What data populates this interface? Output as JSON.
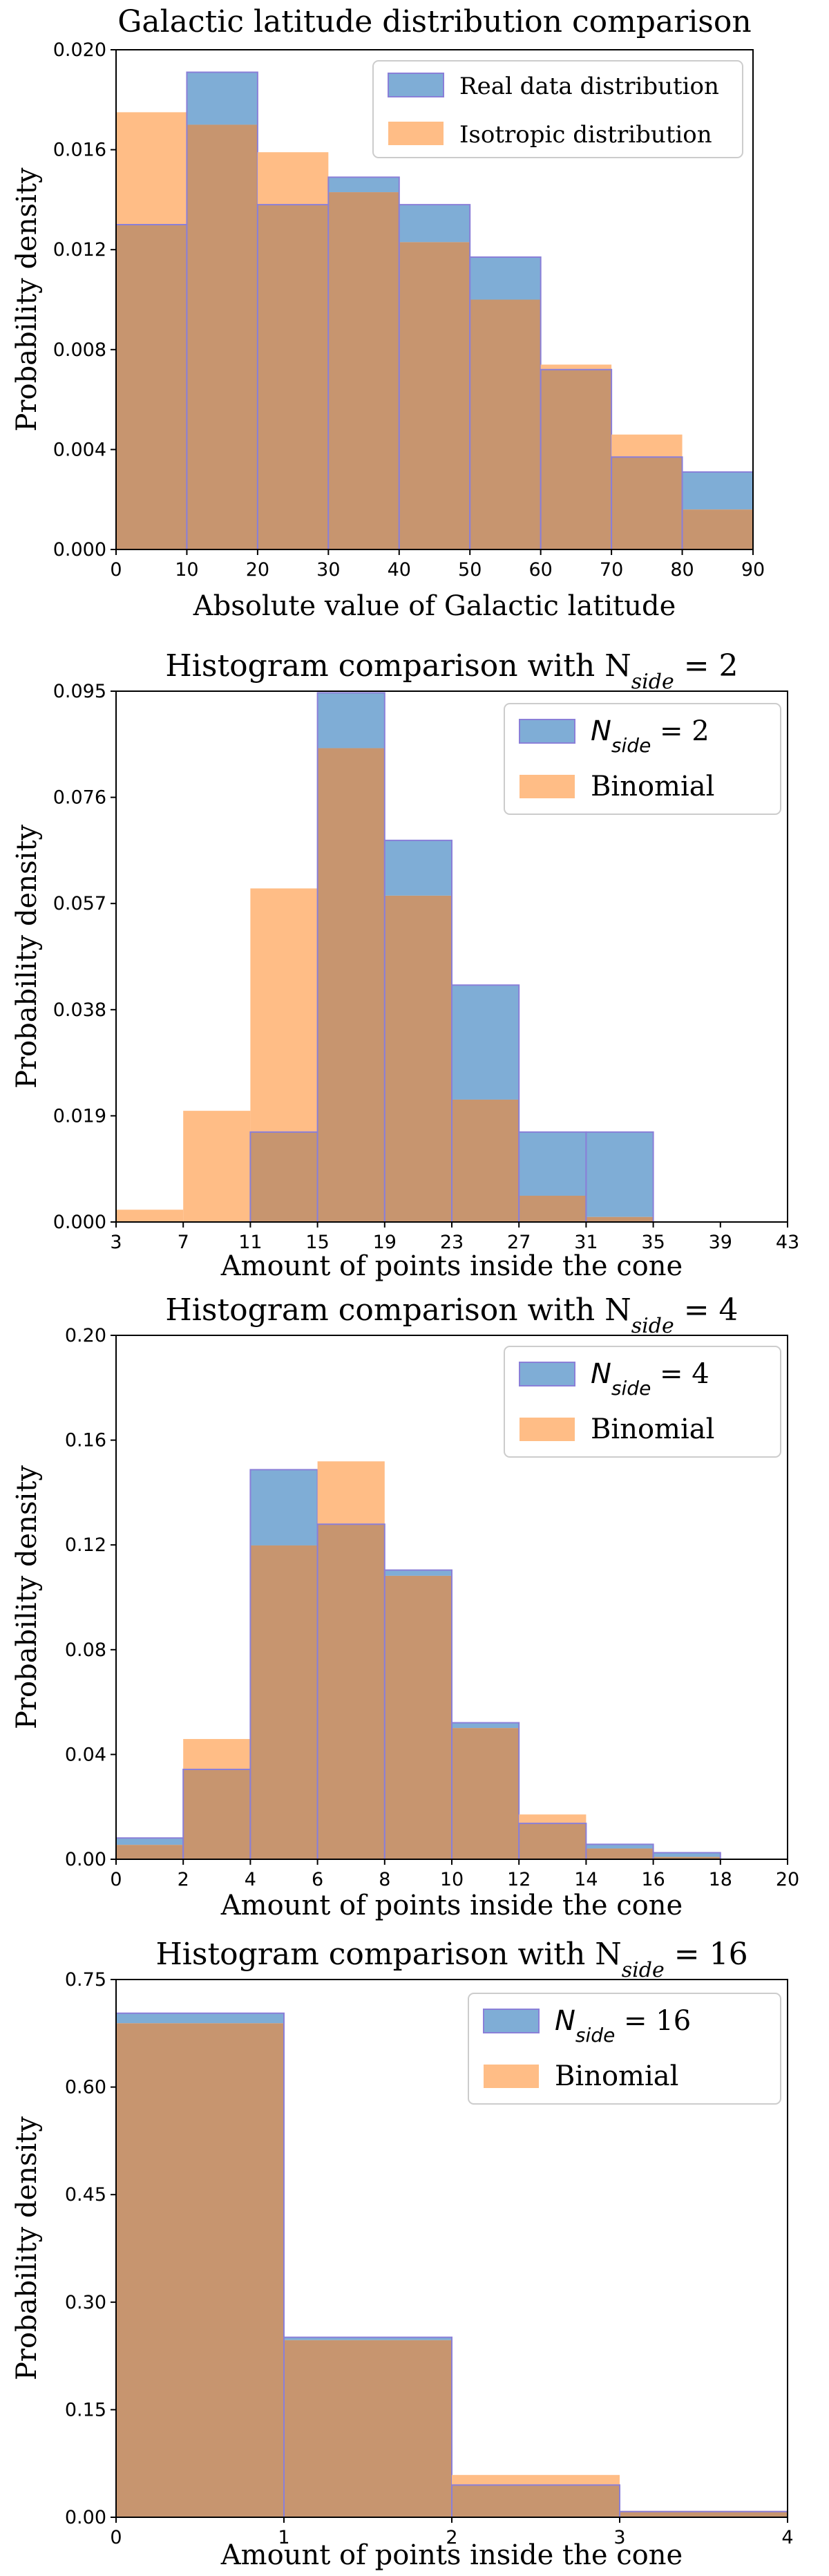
{
  "colors": {
    "series_a": "#7fadd6",
    "series_b": "#ffbd86",
    "overlap": "#c7956f",
    "edge": "#8a7fd8"
  },
  "chart_data": [
    {
      "type": "bar",
      "title": "Galactic latitude distribution comparison",
      "xlabel": "Absolute value of Galactic latitude",
      "ylabel": "Probability density",
      "bin_edges": [
        0,
        10,
        20,
        30,
        40,
        50,
        60,
        70,
        80,
        90
      ],
      "xticks": [
        "0",
        "10",
        "20",
        "30",
        "40",
        "50",
        "60",
        "70",
        "80",
        "90"
      ],
      "xlim": [
        0,
        90
      ],
      "ylim": [
        0,
        0.02
      ],
      "yticks": [
        "0.000",
        "0.004",
        "0.008",
        "0.012",
        "0.016",
        "0.020"
      ],
      "legend_position": "top-right",
      "series": [
        {
          "name": "Real data distribution",
          "values": [
            0.013,
            0.0191,
            0.0138,
            0.0149,
            0.0138,
            0.0117,
            0.0072,
            0.0037,
            0.0031
          ]
        },
        {
          "name": "Isotropic distribution",
          "values": [
            0.0175,
            0.017,
            0.0159,
            0.0143,
            0.0123,
            0.01,
            0.0074,
            0.0046,
            0.0016
          ]
        }
      ]
    },
    {
      "type": "bar",
      "title": "Histogram comparison with N",
      "title_sub": "side",
      "title_rest": " = 2",
      "xlabel": "Amount of points inside the cone",
      "ylabel": "Probability density",
      "bin_edges": [
        3,
        7,
        11,
        15,
        19,
        23,
        27,
        31,
        35,
        39,
        43
      ],
      "xticks": [
        "3",
        "7",
        "11",
        "15",
        "19",
        "23",
        "27",
        "31",
        "35",
        "39",
        "43"
      ],
      "xlim": [
        3,
        43
      ],
      "ylim": [
        0,
        0.095
      ],
      "yticks": [
        "0.000",
        "0.019",
        "0.038",
        "0.057",
        "0.076",
        "0.095"
      ],
      "legend_position": "top-right",
      "series": [
        {
          "name": "N",
          "name_sub": "side",
          "name_rest": " = 2",
          "values": [
            0,
            0,
            0.0161,
            0.0947,
            0.0683,
            0.0424,
            0.0161,
            0.0161,
            0,
            0
          ]
        },
        {
          "name": "Binomial",
          "values": [
            0.0022,
            0.0199,
            0.0597,
            0.0848,
            0.0584,
            0.0219,
            0.0047,
            0.0009,
            0,
            0
          ]
        }
      ]
    },
    {
      "type": "bar",
      "title": "Histogram comparison with N",
      "title_sub": "side",
      "title_rest": " = 4",
      "xlabel": "Amount of points inside the cone",
      "ylabel": "Probability density",
      "bin_edges": [
        0,
        2,
        4,
        6,
        8,
        10,
        12,
        14,
        16,
        18,
        20
      ],
      "xticks": [
        "0",
        "2",
        "4",
        "6",
        "8",
        "10",
        "12",
        "14",
        "16",
        "18",
        "20"
      ],
      "xlim": [
        0,
        20
      ],
      "ylim": [
        0,
        0.2
      ],
      "yticks": [
        "0.00",
        "0.04",
        "0.08",
        "0.12",
        "0.16",
        "0.20"
      ],
      "legend_position": "top-right",
      "series": [
        {
          "name": "N",
          "name_sub": "side",
          "name_rest": " = 4",
          "values": [
            0.0081,
            0.0343,
            0.1487,
            0.1279,
            0.1104,
            0.0521,
            0.0137,
            0.0057,
            0.0025,
            0
          ]
        },
        {
          "name": "Binomial",
          "values": [
            0.0055,
            0.0459,
            0.1198,
            0.1519,
            0.1082,
            0.0501,
            0.0171,
            0.0041,
            0.0009,
            0
          ]
        }
      ]
    },
    {
      "type": "bar",
      "title": "Histogram comparison with N",
      "title_sub": "side",
      "title_rest": " = 16",
      "xlabel": "Amount of points inside the cone",
      "ylabel": "Probability density",
      "bin_edges": [
        0,
        1,
        2,
        3,
        4
      ],
      "xticks": [
        "0",
        "1",
        "2",
        "3",
        "4"
      ],
      "xlim": [
        0,
        4
      ],
      "ylim": [
        0,
        0.75
      ],
      "yticks": [
        "0.00",
        "0.15",
        "0.30",
        "0.45",
        "0.60",
        "0.75"
      ],
      "legend_position": "top-right",
      "series": [
        {
          "name": "N",
          "name_sub": "side",
          "name_rest": " = 16",
          "values": [
            0.703,
            0.251,
            0.045,
            0.008
          ]
        },
        {
          "name": "Binomial",
          "values": [
            0.689,
            0.247,
            0.059,
            0.009
          ]
        }
      ]
    }
  ]
}
